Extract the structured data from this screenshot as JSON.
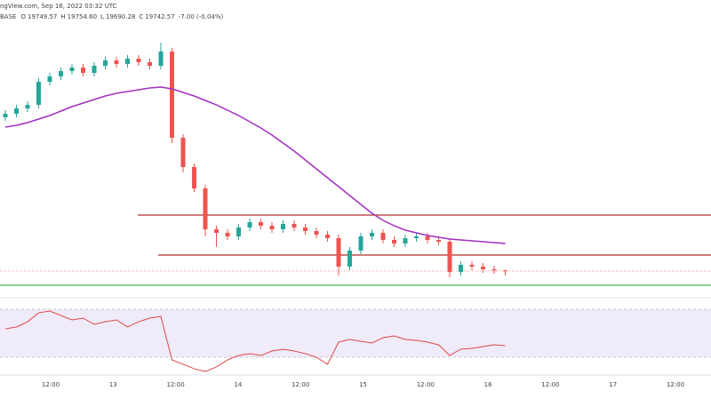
{
  "chart_data": {
    "type": "candlestick",
    "title": "ngView.com, Sep 16, 2022 03:32 UTC",
    "symbol": "BASE",
    "ohlc_text": [
      {
        "label": "O",
        "value": "19749.57"
      },
      {
        "label": "H",
        "value": "19754.60"
      },
      {
        "label": "L",
        "value": "19690.28"
      },
      {
        "label": "C",
        "value": "19742.57"
      }
    ],
    "change_text": "-7.00 (-0.04%)",
    "x_labels": [
      "12:00",
      "13",
      "12:00",
      "14",
      "12:00",
      "15",
      "12:00",
      "16",
      "12:00",
      "17",
      "12:00"
    ],
    "ylim": [
      19492,
      22642
    ],
    "up_color": "#26a69a",
    "down_color": "#ef5350",
    "open": [
      21472,
      21512,
      21572,
      21612,
      21872,
      21932,
      21992,
      22032,
      21972,
      22052,
      22112,
      22072,
      22132,
      22092,
      22052,
      22212,
      21242,
      20912,
      20672,
      20212,
      20172,
      20132,
      20232,
      20292,
      20252,
      20212,
      20272,
      20232,
      20192,
      20152,
      20112,
      19792,
      19972,
      20132,
      20172,
      20092,
      20052,
      20112,
      20132,
      20092,
      20072,
      19732,
      19812,
      19792,
      19762,
      19749.57
    ],
    "high": [
      21552,
      21612,
      21652,
      21912,
      21972,
      22032,
      22072,
      22072,
      22092,
      22152,
      22152,
      22172,
      22172,
      22132,
      22312,
      22252,
      21282,
      20952,
      20712,
      20252,
      20212,
      20272,
      20332,
      20332,
      20292,
      20312,
      20312,
      20272,
      20232,
      20192,
      20152,
      20012,
      20172,
      20212,
      20212,
      20132,
      20152,
      20172,
      20172,
      20132,
      20112,
      19852,
      19852,
      19832,
      19802,
      19754.6
    ],
    "low": [
      21432,
      21472,
      21532,
      21572,
      21832,
      21892,
      21952,
      21932,
      21932,
      22012,
      22032,
      22032,
      22052,
      22012,
      22012,
      21182,
      20852,
      20632,
      20132,
      20012,
      20092,
      20092,
      20192,
      20212,
      20172,
      20172,
      20192,
      20152,
      20112,
      20072,
      19692,
      19752,
      19932,
      20092,
      20052,
      20012,
      20012,
      20072,
      20052,
      20032,
      19672,
      19692,
      19752,
      19722,
      19710,
      19690.28
    ],
    "close": [
      21512,
      21572,
      21612,
      21872,
      21932,
      21992,
      22032,
      21972,
      22052,
      22112,
      22072,
      22132,
      22092,
      22052,
      22212,
      21242,
      20912,
      20672,
      20212,
      20172,
      20132,
      20232,
      20292,
      20252,
      20212,
      20272,
      20232,
      20192,
      20152,
      20112,
      19792,
      19972,
      20132,
      20172,
      20092,
      20052,
      20112,
      20132,
      20092,
      20072,
      19732,
      19812,
      19792,
      19762,
      19749.57,
      19742.57
    ],
    "ma": {
      "color": "#a12fbf",
      "values": [
        21362,
        21382,
        21412,
        21452,
        21492,
        21542,
        21592,
        21632,
        21672,
        21712,
        21742,
        21762,
        21782,
        21802,
        21812,
        21792,
        21752,
        21712,
        21662,
        21612,
        21552,
        21492,
        21422,
        21352,
        21272,
        21182,
        21092,
        20992,
        20892,
        20792,
        20692,
        20592,
        20492,
        20392,
        20312,
        20252,
        20202,
        20172,
        20142,
        20122,
        20102,
        20092,
        20082,
        20072,
        20062,
        20052
      ]
    },
    "hlines": [
      {
        "value": 20372,
        "color": "#b22b2b"
      },
      {
        "value": 19922,
        "color": "#b22b2b"
      },
      {
        "value": 19582,
        "color": "#4caf50"
      }
    ],
    "rsi": {
      "color": "#e0474c",
      "band": [
        30,
        70
      ],
      "band_color": "#7e57c2",
      "ylim": [
        10,
        90
      ],
      "values": [
        53.7,
        55.2,
        59.6,
        67.0,
        68.5,
        64.8,
        61.1,
        62.6,
        57.4,
        59.6,
        61.1,
        55.2,
        59.6,
        62.6,
        64.1,
        27.8,
        24.1,
        20.4,
        18.1,
        21.9,
        27.8,
        31.5,
        33.0,
        31.5,
        35.2,
        36.7,
        35.2,
        33.0,
        30.0,
        24.1,
        42.6,
        44.8,
        43.3,
        41.9,
        46.3,
        47.8,
        44.8,
        44.1,
        42.6,
        40.4,
        31.5,
        36.7,
        37.4,
        38.9,
        40.4,
        39.6
      ]
    }
  }
}
